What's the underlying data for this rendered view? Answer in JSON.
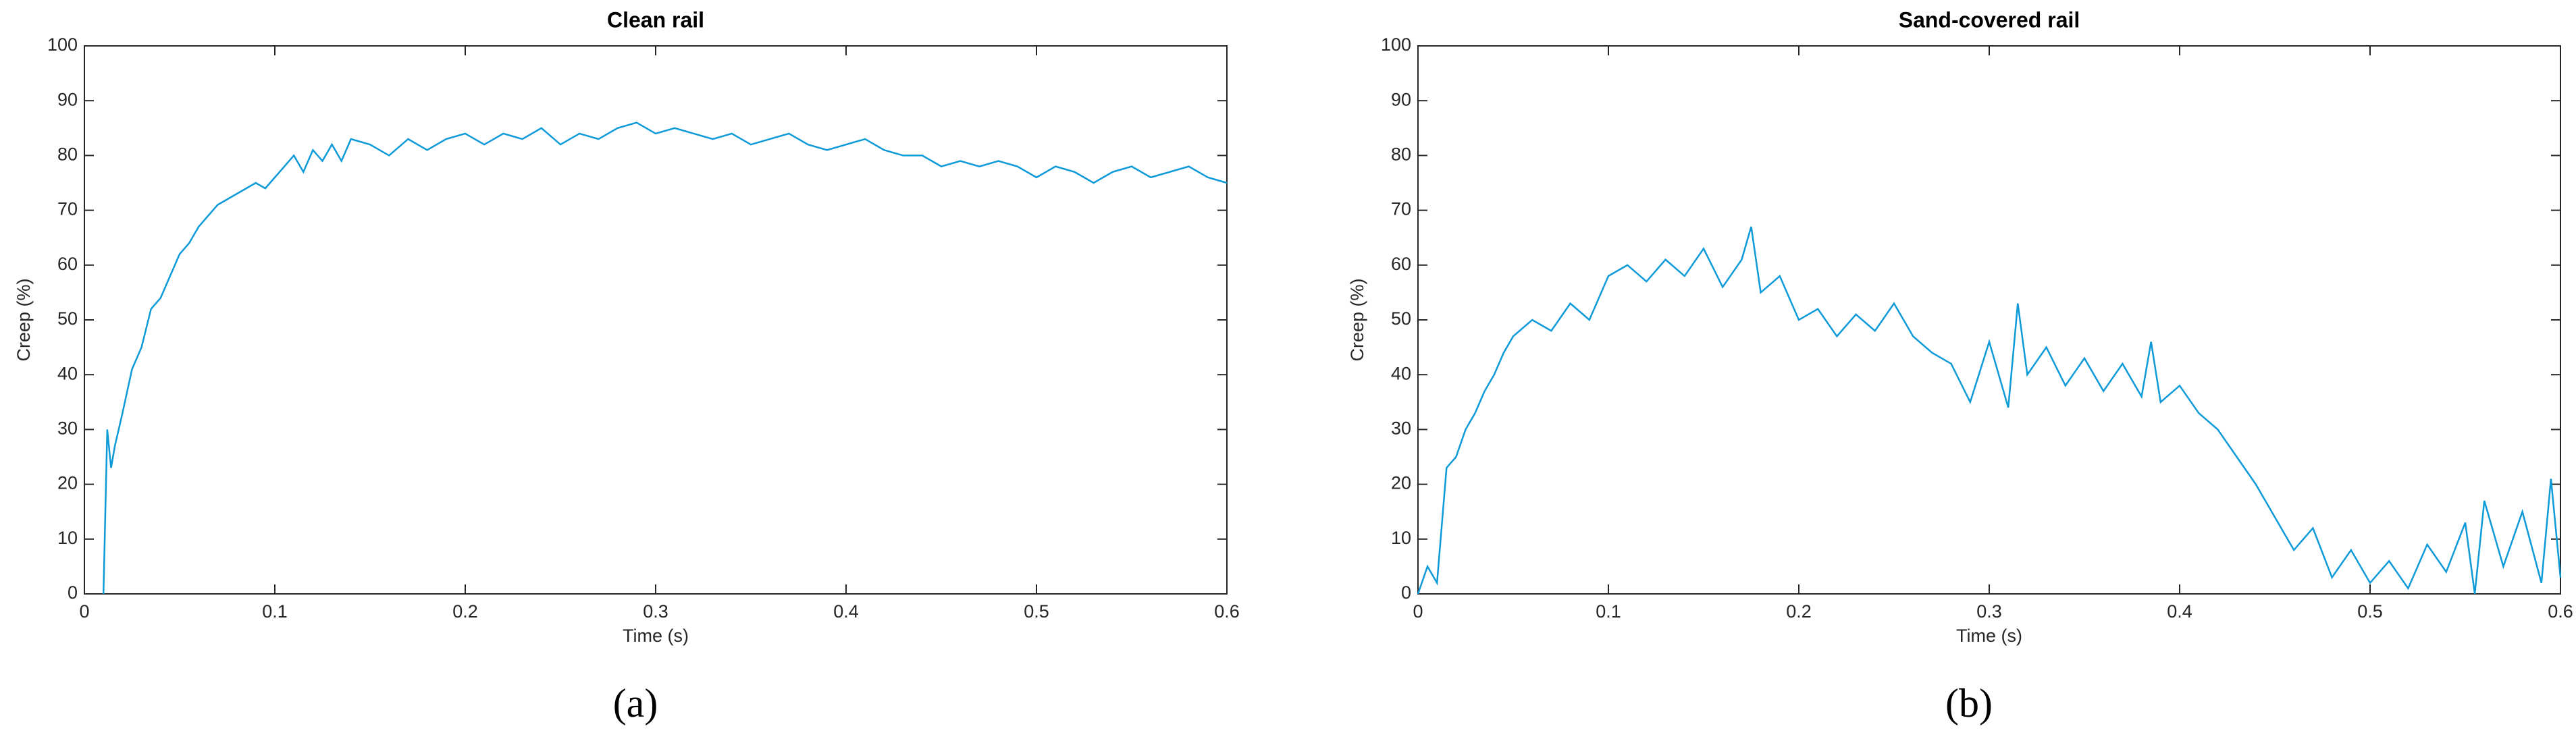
{
  "chart_data": [
    {
      "type": "line",
      "title": "Clean rail",
      "xlabel": "Time (s)",
      "ylabel": "Creep (%)",
      "panel_label": "(a)",
      "color": "#0d9ad9",
      "x": [
        0.01,
        0.012,
        0.014,
        0.016,
        0.02,
        0.025,
        0.03,
        0.035,
        0.04,
        0.045,
        0.05,
        0.055,
        0.06,
        0.065,
        0.07,
        0.075,
        0.08,
        0.085,
        0.09,
        0.095,
        0.1,
        0.105,
        0.11,
        0.115,
        0.12,
        0.125,
        0.13,
        0.135,
        0.14,
        0.15,
        0.16,
        0.17,
        0.18,
        0.19,
        0.2,
        0.21,
        0.22,
        0.23,
        0.24,
        0.25,
        0.26,
        0.27,
        0.28,
        0.29,
        0.3,
        0.31,
        0.32,
        0.33,
        0.34,
        0.35,
        0.36,
        0.37,
        0.38,
        0.39,
        0.4,
        0.41,
        0.42,
        0.43,
        0.44,
        0.45,
        0.46,
        0.47,
        0.48,
        0.49,
        0.5,
        0.51,
        0.52,
        0.53,
        0.54,
        0.55,
        0.56,
        0.57,
        0.58,
        0.59,
        0.6
      ],
      "values": [
        0,
        30,
        23,
        27,
        33,
        41,
        45,
        52,
        54,
        58,
        62,
        64,
        67,
        69,
        71,
        72,
        73,
        74,
        75,
        74,
        76,
        78,
        80,
        77,
        81,
        79,
        82,
        79,
        83,
        82,
        80,
        83,
        81,
        83,
        84,
        82,
        84,
        83,
        85,
        82,
        84,
        83,
        85,
        86,
        84,
        85,
        84,
        83,
        84,
        82,
        83,
        84,
        82,
        81,
        82,
        83,
        81,
        80,
        80,
        78,
        79,
        78,
        79,
        78,
        76,
        78,
        77,
        75,
        77,
        78,
        76,
        77,
        78,
        76,
        75
      ],
      "xlim": [
        0,
        0.6
      ],
      "xticks": [
        0,
        0.1,
        0.2,
        0.3,
        0.4,
        0.5,
        0.6
      ],
      "ylim": [
        0,
        100
      ],
      "yticks": [
        0,
        10,
        20,
        30,
        40,
        50,
        60,
        70,
        80,
        90,
        100
      ]
    },
    {
      "type": "line",
      "title": "Sand-covered rail",
      "xlabel": "Time (s)",
      "ylabel": "Creep (%)",
      "panel_label": "(b)",
      "color": "#0d9ad9",
      "x": [
        0,
        0.005,
        0.01,
        0.015,
        0.02,
        0.025,
        0.03,
        0.035,
        0.04,
        0.045,
        0.05,
        0.06,
        0.07,
        0.08,
        0.09,
        0.1,
        0.11,
        0.12,
        0.13,
        0.14,
        0.15,
        0.16,
        0.17,
        0.175,
        0.18,
        0.19,
        0.2,
        0.21,
        0.22,
        0.23,
        0.24,
        0.25,
        0.26,
        0.27,
        0.28,
        0.29,
        0.3,
        0.31,
        0.315,
        0.32,
        0.33,
        0.34,
        0.35,
        0.36,
        0.37,
        0.38,
        0.385,
        0.39,
        0.4,
        0.41,
        0.42,
        0.43,
        0.44,
        0.45,
        0.46,
        0.47,
        0.48,
        0.49,
        0.5,
        0.51,
        0.52,
        0.53,
        0.54,
        0.55,
        0.555,
        0.56,
        0.57,
        0.58,
        0.59,
        0.595,
        0.6
      ],
      "values": [
        0,
        5,
        2,
        23,
        25,
        30,
        33,
        37,
        40,
        44,
        47,
        50,
        48,
        53,
        50,
        58,
        60,
        57,
        61,
        58,
        63,
        56,
        61,
        67,
        55,
        58,
        50,
        52,
        47,
        51,
        48,
        53,
        47,
        44,
        42,
        35,
        46,
        34,
        53,
        40,
        45,
        38,
        43,
        37,
        42,
        36,
        46,
        35,
        38,
        33,
        30,
        25,
        20,
        14,
        8,
        12,
        3,
        8,
        2,
        6,
        1,
        9,
        4,
        13,
        0,
        17,
        5,
        15,
        2,
        21,
        3
      ],
      "xlim": [
        0,
        0.6
      ],
      "xticks": [
        0,
        0.1,
        0.2,
        0.3,
        0.4,
        0.5,
        0.6
      ],
      "ylim": [
        0,
        100
      ],
      "yticks": [
        0,
        10,
        20,
        30,
        40,
        50,
        60,
        70,
        80,
        90,
        100
      ]
    }
  ]
}
